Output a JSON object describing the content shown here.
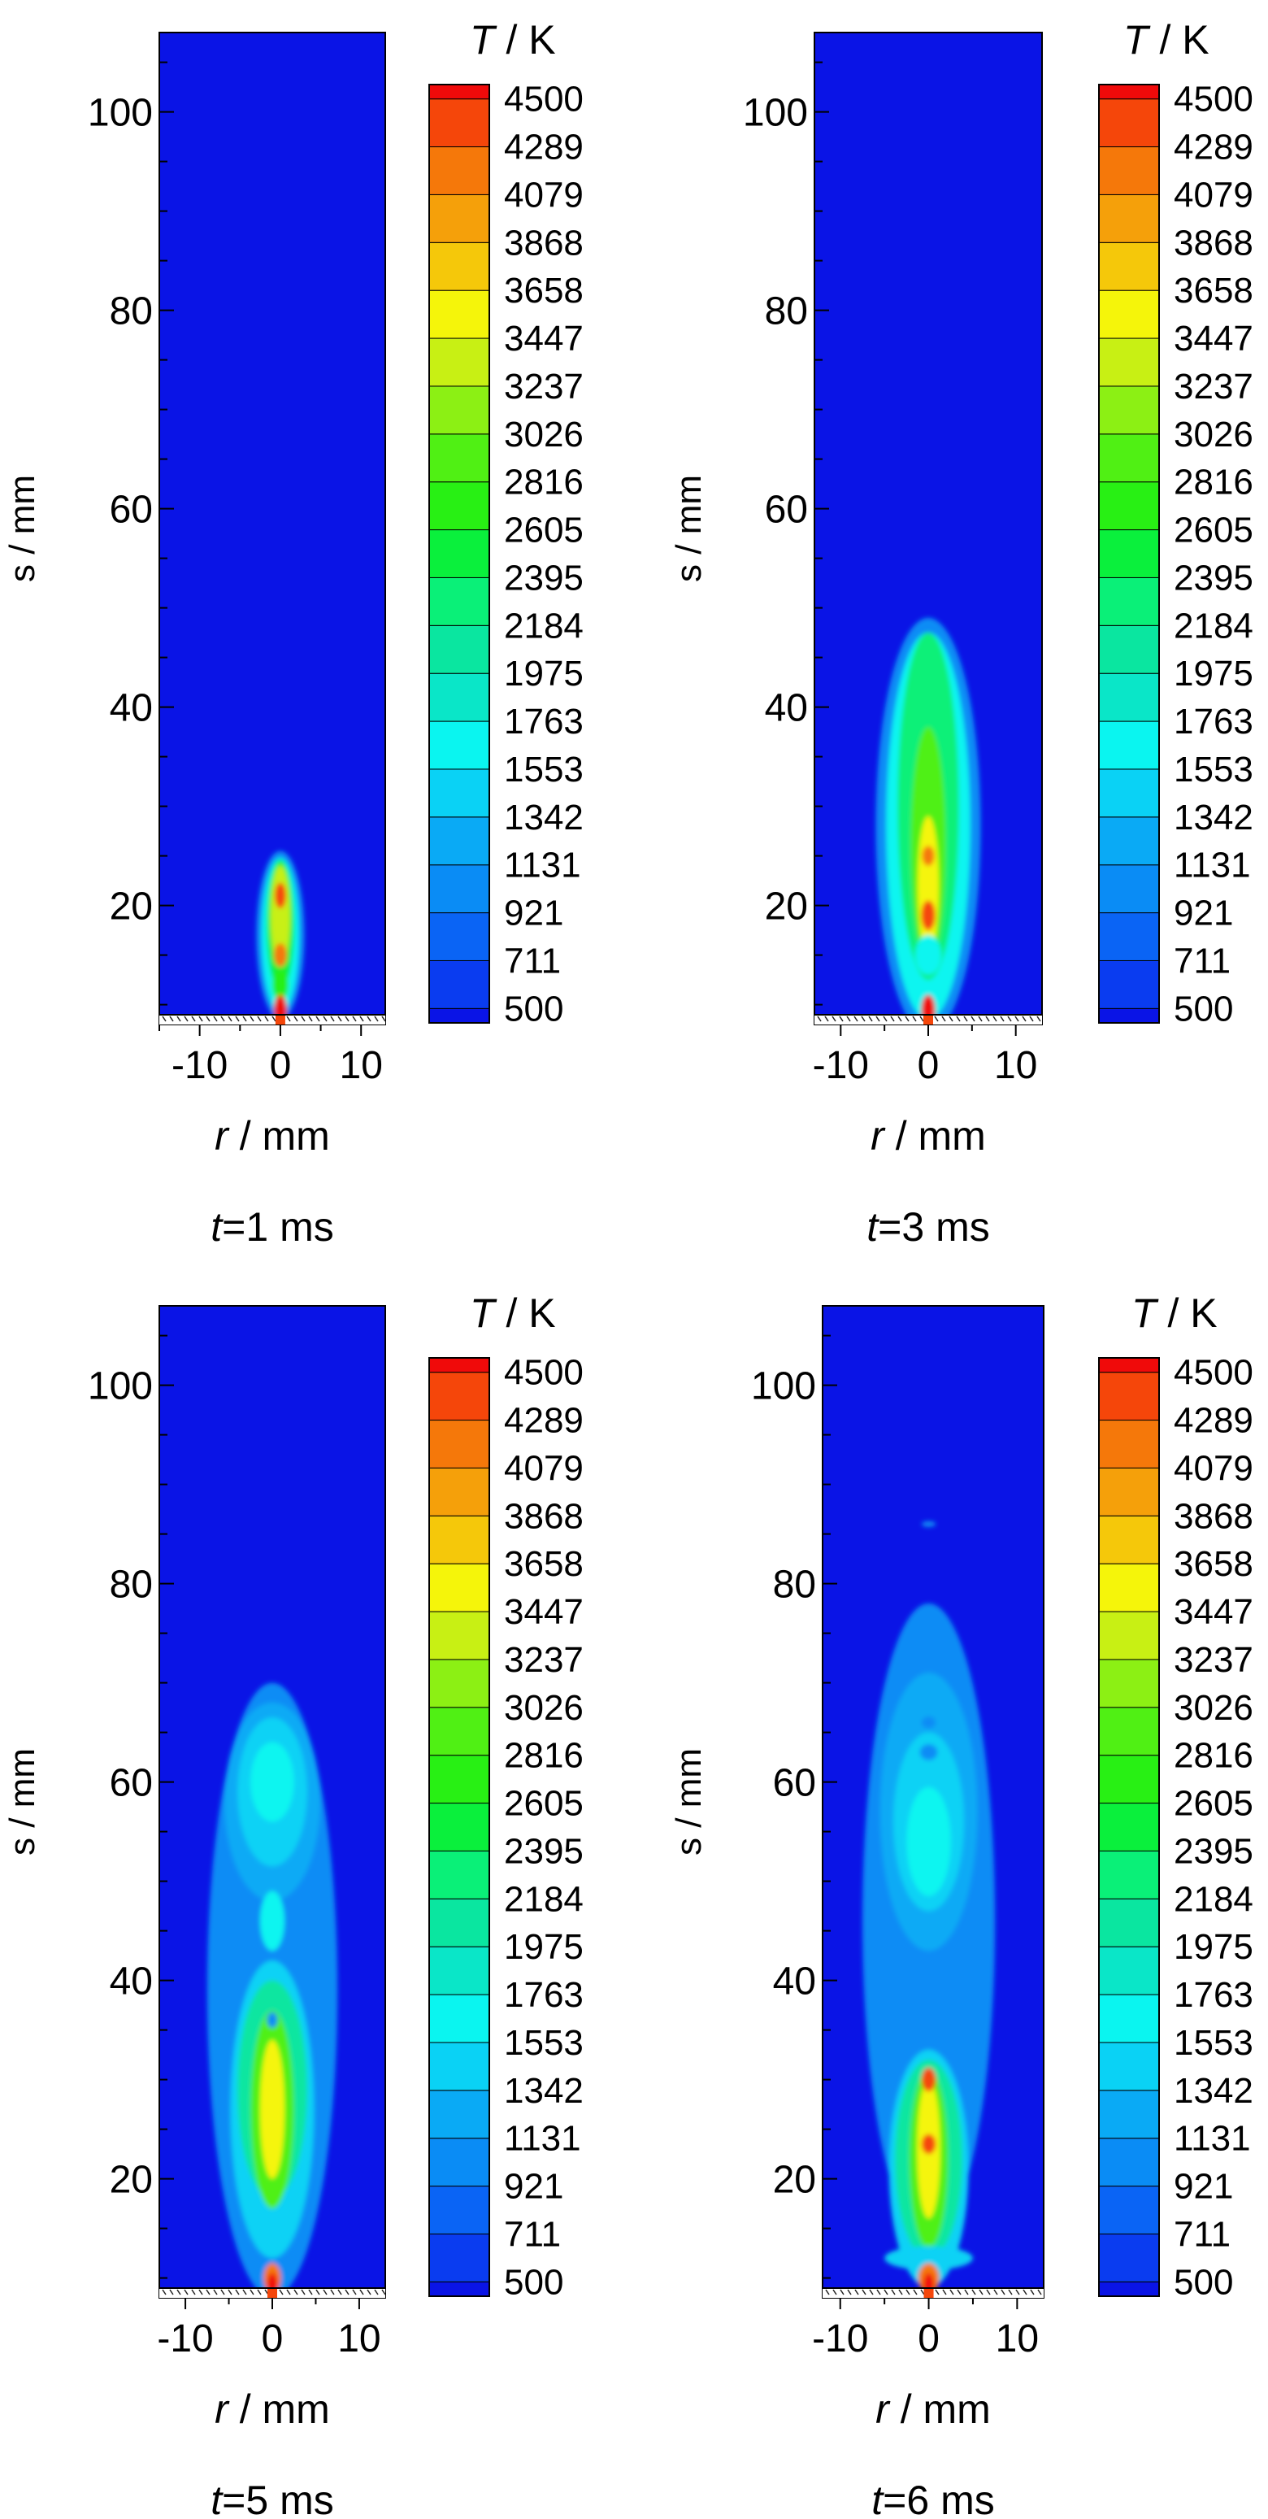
{
  "figure": {
    "colorbar": {
      "title_var": "T",
      "title_unit": " / K",
      "levels": [
        500,
        711,
        921,
        1131,
        1342,
        1553,
        1763,
        1975,
        2184,
        2395,
        2605,
        2816,
        3026,
        3237,
        3447,
        3658,
        3868,
        4079,
        4289,
        4500
      ],
      "colors": [
        "#0a14e6",
        "#0a3cf0",
        "#0a64f5",
        "#0a8cf5",
        "#0aaaf5",
        "#0ad2f5",
        "#0af5f0",
        "#0ae6c8",
        "#0ae6a0",
        "#0af078",
        "#0af03c",
        "#28f014",
        "#50f014",
        "#8cf014",
        "#c8f014",
        "#f5f50a",
        "#f5c80a",
        "#f5a00a",
        "#f5780a",
        "#f5460a",
        "#f00a0a"
      ],
      "background_color": "#0a14e6"
    }
  },
  "chart_data": [
    {
      "type": "heatmap",
      "caption_var": "t",
      "caption_rest": "=1 ms",
      "xlabel_var": "r",
      "xlabel_unit": " / mm",
      "ylabel": "s / mm",
      "xlim": [
        -15,
        13
      ],
      "ylim": [
        8,
        108
      ],
      "xticks": [
        -10,
        0,
        10
      ],
      "yticks": [
        20,
        40,
        60,
        80,
        100
      ],
      "blobs": [
        {
          "x": 0,
          "y": 17,
          "rx": 3.0,
          "ry": 8.5,
          "t": 921
        },
        {
          "x": 0,
          "y": 17,
          "rx": 2.3,
          "ry": 7.8,
          "t": 1553
        },
        {
          "x": 0,
          "y": 18,
          "rx": 1.7,
          "ry": 6.6,
          "t": 2395
        },
        {
          "x": 0,
          "y": 19,
          "rx": 1.2,
          "ry": 5.0,
          "t": 3237
        },
        {
          "x": 0,
          "y": 12,
          "rx": 1.0,
          "ry": 1.6,
          "t": 2605
        },
        {
          "x": 0,
          "y": 15,
          "rx": 0.8,
          "ry": 1.2,
          "t": 4079
        },
        {
          "x": 0,
          "y": 21,
          "rx": 0.7,
          "ry": 1.3,
          "t": 4289
        },
        {
          "x": 0,
          "y": 9.5,
          "rx": 0.8,
          "ry": 1.5,
          "t": 4500
        }
      ]
    },
    {
      "type": "heatmap",
      "caption_var": "t",
      "caption_rest": "=3 ms",
      "xlabel_var": "r",
      "xlabel_unit": " / mm",
      "ylabel": "s / mm",
      "xlim": [
        -13,
        13
      ],
      "ylim": [
        8,
        108
      ],
      "xticks": [
        -10,
        0,
        10
      ],
      "yticks": [
        20,
        40,
        60,
        80,
        100
      ],
      "blobs": [
        {
          "x": 0,
          "y": 28,
          "rx": 6.0,
          "ry": 21,
          "t": 921
        },
        {
          "x": 0,
          "y": 28,
          "rx": 4.8,
          "ry": 19.5,
          "t": 1553
        },
        {
          "x": 0,
          "y": 30,
          "rx": 3.5,
          "ry": 17.5,
          "t": 2184
        },
        {
          "x": 0,
          "y": 26,
          "rx": 2.0,
          "ry": 12,
          "t": 2816
        },
        {
          "x": 0,
          "y": 22,
          "rx": 1.2,
          "ry": 7,
          "t": 3447
        },
        {
          "x": 0,
          "y": 15,
          "rx": 1.5,
          "ry": 2.0,
          "t": 1553
        },
        {
          "x": 0,
          "y": 19,
          "rx": 0.8,
          "ry": 1.5,
          "t": 4289
        },
        {
          "x": 0,
          "y": 25,
          "rx": 0.7,
          "ry": 1.0,
          "t": 4079
        },
        {
          "x": 0,
          "y": 9.5,
          "rx": 0.8,
          "ry": 1.5,
          "t": 4500
        }
      ]
    },
    {
      "type": "heatmap",
      "caption_var": "t",
      "caption_rest": "=5 ms",
      "xlabel_var": "r",
      "xlabel_unit": " / mm",
      "ylabel": "s / mm",
      "xlim": [
        -13,
        13
      ],
      "ylim": [
        8,
        108
      ],
      "xticks": [
        -10,
        0,
        10
      ],
      "yticks": [
        20,
        40,
        60,
        80,
        100
      ],
      "blobs": [
        {
          "x": 0,
          "y": 39,
          "rx": 7.5,
          "ry": 31,
          "t": 921
        },
        {
          "x": 0,
          "y": 58,
          "rx": 5.5,
          "ry": 10,
          "t": 1131
        },
        {
          "x": 0,
          "y": 59,
          "rx": 4.0,
          "ry": 7.5,
          "t": 1342
        },
        {
          "x": 0,
          "y": 60,
          "rx": 2.5,
          "ry": 4.0,
          "t": 1553
        },
        {
          "x": 0,
          "y": 27,
          "rx": 4.8,
          "ry": 15,
          "t": 1342
        },
        {
          "x": 0,
          "y": 29,
          "rx": 4.0,
          "ry": 11,
          "t": 1975
        },
        {
          "x": 0,
          "y": 27,
          "rx": 2.5,
          "ry": 10,
          "t": 2816
        },
        {
          "x": 0,
          "y": 27,
          "rx": 1.4,
          "ry": 7,
          "t": 3447
        },
        {
          "x": 0,
          "y": 46,
          "rx": 1.4,
          "ry": 3.0,
          "t": 1553
        },
        {
          "x": 0,
          "y": 36,
          "rx": 0.6,
          "ry": 0.8,
          "t": 921
        },
        {
          "x": 0,
          "y": 14,
          "rx": 1.5,
          "ry": 1.5,
          "t": 1342
        },
        {
          "x": 0,
          "y": 10,
          "rx": 1.0,
          "ry": 1.5,
          "t": 4079
        },
        {
          "x": 0,
          "y": 9.3,
          "rx": 0.6,
          "ry": 1.2,
          "t": 4500
        }
      ]
    },
    {
      "type": "heatmap",
      "caption_var": "t",
      "caption_rest": "=6 ms",
      "xlabel_var": "r",
      "xlabel_unit": " / mm",
      "ylabel": "s / mm",
      "xlim": [
        -12,
        13
      ],
      "ylim": [
        8,
        108
      ],
      "xticks": [
        -10,
        0,
        10
      ],
      "yticks": [
        20,
        40,
        60,
        80,
        100
      ],
      "blobs": [
        {
          "x": 0,
          "y": 46,
          "rx": 7.5,
          "ry": 32,
          "t": 921
        },
        {
          "x": 0,
          "y": 57,
          "rx": 5.5,
          "ry": 14,
          "t": 1131
        },
        {
          "x": 0,
          "y": 56,
          "rx": 4.0,
          "ry": 9,
          "t": 1342
        },
        {
          "x": 0,
          "y": 54,
          "rx": 2.5,
          "ry": 5.5,
          "t": 1553
        },
        {
          "x": 0,
          "y": 63,
          "rx": 1.0,
          "ry": 0.8,
          "t": 921
        },
        {
          "x": 0,
          "y": 66,
          "rx": 0.8,
          "ry": 0.6,
          "t": 921
        },
        {
          "x": 0,
          "y": 86,
          "rx": 0.8,
          "ry": 0.3,
          "t": 921
        },
        {
          "x": 0,
          "y": 21,
          "rx": 4.5,
          "ry": 12,
          "t": 1342
        },
        {
          "x": 0,
          "y": 22,
          "rx": 3.8,
          "ry": 10,
          "t": 1975
        },
        {
          "x": 0,
          "y": 22,
          "rx": 2.2,
          "ry": 9,
          "t": 2816
        },
        {
          "x": 0,
          "y": 23,
          "rx": 1.3,
          "ry": 7,
          "t": 3447
        },
        {
          "x": 0,
          "y": 30,
          "rx": 0.8,
          "ry": 1.2,
          "t": 4289
        },
        {
          "x": 0,
          "y": 23.5,
          "rx": 0.8,
          "ry": 1.0,
          "t": 4289
        },
        {
          "x": 0,
          "y": 12,
          "rx": 5.0,
          "ry": 1.2,
          "t": 1342
        },
        {
          "x": 0,
          "y": 10,
          "rx": 1.2,
          "ry": 1.5,
          "t": 4079
        },
        {
          "x": 0,
          "y": 9.3,
          "rx": 0.6,
          "ry": 1.2,
          "t": 4500
        }
      ]
    }
  ]
}
